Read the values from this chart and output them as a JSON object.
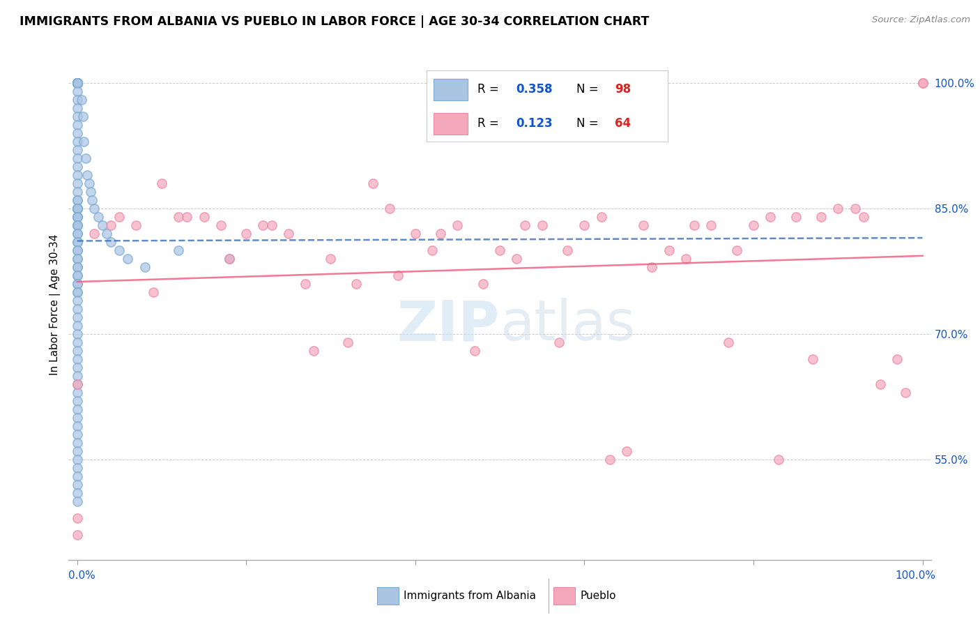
{
  "title": "IMMIGRANTS FROM ALBANIA VS PUEBLO IN LABOR FORCE | AGE 30-34 CORRELATION CHART",
  "source": "Source: ZipAtlas.com",
  "ylabel": "In Labor Force | Age 30-34",
  "xlim": [
    -0.01,
    1.01
  ],
  "ylim": [
    0.43,
    1.04
  ],
  "yticks": [
    0.55,
    0.7,
    0.85,
    1.0
  ],
  "ytick_labels": [
    "55.0%",
    "70.0%",
    "85.0%",
    "100.0%"
  ],
  "albania_R": 0.358,
  "albania_N": 98,
  "pueblo_R": 0.123,
  "pueblo_N": 64,
  "albania_color": "#aac4e4",
  "albania_edge_color": "#7aaad0",
  "pueblo_color": "#f4a8bc",
  "pueblo_edge_color": "#ee88a8",
  "albania_line_color": "#4477bb",
  "pueblo_line_color": "#f06080",
  "legend_blue": "#1155cc",
  "legend_red": "#cc2222",
  "albania_x": [
    0.0,
    0.0,
    0.0,
    0.0,
    0.0,
    0.0,
    0.0,
    0.0,
    0.0,
    0.0,
    0.0,
    0.0,
    0.0,
    0.0,
    0.0,
    0.0,
    0.0,
    0.0,
    0.0,
    0.0,
    0.0,
    0.0,
    0.0,
    0.0,
    0.0,
    0.0,
    0.0,
    0.0,
    0.0,
    0.0,
    0.0,
    0.0,
    0.0,
    0.0,
    0.0,
    0.0,
    0.0,
    0.0,
    0.0,
    0.0,
    0.0,
    0.0,
    0.0,
    0.0,
    0.0,
    0.0,
    0.0,
    0.0,
    0.0,
    0.0,
    0.0,
    0.0,
    0.0,
    0.0,
    0.0,
    0.0,
    0.0,
    0.0,
    0.0,
    0.0,
    0.0,
    0.0,
    0.0,
    0.0,
    0.0,
    0.0,
    0.0,
    0.0,
    0.0,
    0.0,
    0.0,
    0.0,
    0.0,
    0.0,
    0.0,
    0.0,
    0.0,
    0.0,
    0.0,
    0.0,
    0.005,
    0.007,
    0.008,
    0.01,
    0.012,
    0.014,
    0.016,
    0.018,
    0.02,
    0.025,
    0.03,
    0.035,
    0.04,
    0.05,
    0.06,
    0.08,
    0.12,
    0.18
  ],
  "albania_y": [
    1.0,
    1.0,
    1.0,
    1.0,
    1.0,
    1.0,
    1.0,
    1.0,
    1.0,
    1.0,
    1.0,
    1.0,
    1.0,
    0.99,
    0.98,
    0.97,
    0.96,
    0.95,
    0.94,
    0.93,
    0.92,
    0.91,
    0.9,
    0.89,
    0.88,
    0.87,
    0.86,
    0.86,
    0.85,
    0.85,
    0.85,
    0.85,
    0.85,
    0.84,
    0.84,
    0.84,
    0.83,
    0.83,
    0.83,
    0.82,
    0.82,
    0.81,
    0.81,
    0.8,
    0.8,
    0.79,
    0.79,
    0.78,
    0.78,
    0.77,
    0.77,
    0.76,
    0.76,
    0.75,
    0.75,
    0.74,
    0.73,
    0.72,
    0.71,
    0.7,
    0.69,
    0.68,
    0.67,
    0.66,
    0.65,
    0.64,
    0.63,
    0.62,
    0.61,
    0.6,
    0.59,
    0.58,
    0.57,
    0.56,
    0.55,
    0.54,
    0.53,
    0.52,
    0.51,
    0.5,
    0.98,
    0.96,
    0.93,
    0.91,
    0.89,
    0.88,
    0.87,
    0.86,
    0.85,
    0.84,
    0.83,
    0.82,
    0.81,
    0.8,
    0.79,
    0.78,
    0.8,
    0.79
  ],
  "pueblo_x": [
    0.0,
    0.0,
    0.0,
    0.02,
    0.04,
    0.05,
    0.07,
    0.09,
    0.1,
    0.12,
    0.13,
    0.15,
    0.17,
    0.18,
    0.2,
    0.22,
    0.23,
    0.25,
    0.27,
    0.28,
    0.3,
    0.32,
    0.33,
    0.35,
    0.37,
    0.38,
    0.4,
    0.42,
    0.43,
    0.45,
    0.47,
    0.48,
    0.5,
    0.52,
    0.53,
    0.55,
    0.57,
    0.58,
    0.6,
    0.62,
    0.63,
    0.65,
    0.67,
    0.68,
    0.7,
    0.72,
    0.73,
    0.75,
    0.77,
    0.78,
    0.8,
    0.82,
    0.83,
    0.85,
    0.87,
    0.88,
    0.9,
    0.92,
    0.93,
    0.95,
    0.97,
    0.98,
    1.0,
    1.0
  ],
  "pueblo_y": [
    0.64,
    0.48,
    0.46,
    0.82,
    0.83,
    0.84,
    0.83,
    0.75,
    0.88,
    0.84,
    0.84,
    0.84,
    0.83,
    0.79,
    0.82,
    0.83,
    0.83,
    0.82,
    0.76,
    0.68,
    0.79,
    0.69,
    0.76,
    0.88,
    0.85,
    0.77,
    0.82,
    0.8,
    0.82,
    0.83,
    0.68,
    0.76,
    0.8,
    0.79,
    0.83,
    0.83,
    0.69,
    0.8,
    0.83,
    0.84,
    0.55,
    0.56,
    0.83,
    0.78,
    0.8,
    0.79,
    0.83,
    0.83,
    0.69,
    0.8,
    0.83,
    0.84,
    0.55,
    0.84,
    0.67,
    0.84,
    0.85,
    0.85,
    0.84,
    0.64,
    0.67,
    0.63,
    1.0,
    1.0
  ]
}
